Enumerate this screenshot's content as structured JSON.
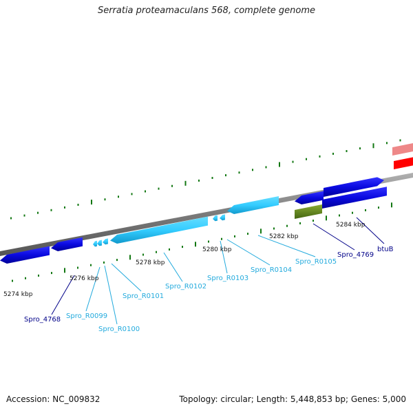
{
  "title": "Serratia proteamaculans 568, complete genome",
  "footer": {
    "accession": "Accession: NC_009832",
    "summary": "Topology: circular; Length: 5,448,853 bp; Genes: 5,000"
  },
  "colors": {
    "backbone": "#808080",
    "cds": "#1010dd",
    "rna": "#33ccff",
    "label_cds": "#000088",
    "label_rna": "#22aadd",
    "tick": "#117711",
    "salmon": "#ee8888",
    "red": "#ff0000",
    "olive": "#668822"
  },
  "scale": {
    "ticks": [
      {
        "label": "5274 kbp"
      },
      {
        "label": "5276 kbp"
      },
      {
        "label": "5278 kbp"
      },
      {
        "label": "5280 kbp"
      },
      {
        "label": "5282 kbp"
      },
      {
        "label": "5284 kbp"
      }
    ]
  },
  "genes": [
    {
      "name": "Spro_4768",
      "kind": "cds"
    },
    {
      "name": "Spro_R0099",
      "kind": "rna"
    },
    {
      "name": "Spro_R0100",
      "kind": "rna"
    },
    {
      "name": "Spro_R0101",
      "kind": "rna"
    },
    {
      "name": "Spro_R0102",
      "kind": "rna"
    },
    {
      "name": "Spro_R0103",
      "kind": "rna"
    },
    {
      "name": "Spro_R0104",
      "kind": "rna"
    },
    {
      "name": "Spro_R0105",
      "kind": "rna"
    },
    {
      "name": "Spro_4769",
      "kind": "cds"
    },
    {
      "name": "btuB",
      "kind": "cds"
    }
  ]
}
